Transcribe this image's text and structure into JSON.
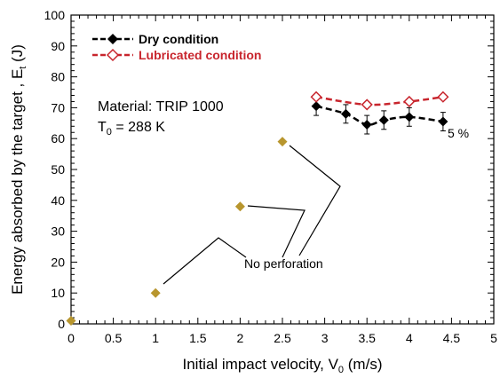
{
  "chart_data": {
    "type": "scatter",
    "xlabel": "Initial impact velocity, V",
    "xlabel_sub": "0",
    "xlabel_unit": " (m/s)",
    "ylabel": "Energy absorbed by the target , E",
    "ylabel_sub": "t",
    "ylabel_unit": " (J)",
    "xlim": [
      0,
      5
    ],
    "ylim": [
      0,
      100
    ],
    "x_ticks": [
      "0",
      "0.5",
      "1",
      "1.5",
      "2",
      "2.5",
      "3",
      "3.5",
      "4",
      "4.5",
      "5"
    ],
    "y_ticks": [
      "0",
      "10",
      "20",
      "30",
      "40",
      "50",
      "60",
      "70",
      "80",
      "90",
      "100"
    ],
    "grid": false,
    "legend_position": "top-left",
    "series": [
      {
        "name": "Dry condition",
        "color": "#000000",
        "marker": "filled-diamond",
        "line": "dashed",
        "x": [
          2.9,
          3.25,
          3.5,
          3.7,
          4.0,
          4.4
        ],
        "y": [
          70.5,
          68.0,
          64.5,
          66.0,
          67.0,
          65.5
        ],
        "err": [
          3.0,
          3.0,
          3.0,
          3.0,
          3.0,
          3.0
        ]
      },
      {
        "name": "Lubricated condition",
        "color": "#c8252d",
        "marker": "open-diamond",
        "line": "dashed",
        "x": [
          2.9,
          3.5,
          4.0,
          4.4
        ],
        "y": [
          73.5,
          71.0,
          72.0,
          73.5
        ]
      },
      {
        "name": "",
        "color": "#b8962e",
        "marker": "filled-diamond",
        "line": "none",
        "x": [
          0.0,
          1.0,
          2.0,
          2.5
        ],
        "y": [
          1.0,
          10.0,
          38.0,
          59.0
        ]
      }
    ],
    "annotations": {
      "material": "Material: TRIP 1000",
      "temperature_prefix": "T",
      "temperature_sub": "0",
      "temperature_value": " = 288 K",
      "no_perforation": "No perforation",
      "percent_label": "5 %"
    }
  }
}
